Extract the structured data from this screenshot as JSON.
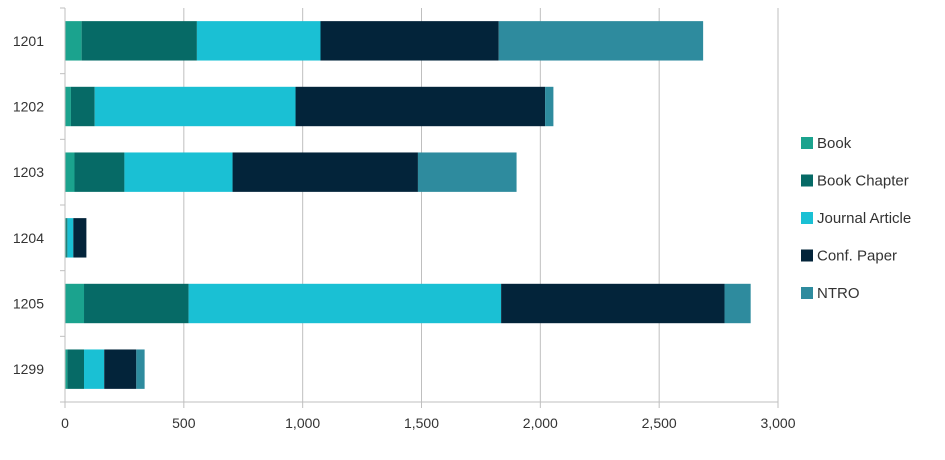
{
  "chart_data": {
    "type": "bar",
    "orientation": "horizontal",
    "stacked": true,
    "title": "",
    "xlabel": "",
    "ylabel": "",
    "categories": [
      "1201",
      "1202",
      "1203",
      "1204",
      "1205",
      "1299"
    ],
    "series": [
      {
        "name": "Book",
        "color": "#1BA38E",
        "values": [
          70,
          25,
          40,
          5,
          80,
          10
        ]
      },
      {
        "name": "Book Chapter",
        "color": "#066A66",
        "values": [
          485,
          100,
          210,
          5,
          440,
          70
        ]
      },
      {
        "name": "Journal Article",
        "color": "#1AC0D4",
        "values": [
          520,
          845,
          455,
          25,
          1315,
          85
        ]
      },
      {
        "name": "Conf. Paper",
        "color": "#03243A",
        "values": [
          750,
          1050,
          780,
          55,
          940,
          135
        ]
      },
      {
        "name": "NTRO",
        "color": "#2E8B9E",
        "values": [
          860,
          35,
          415,
          0,
          110,
          35
        ]
      }
    ],
    "xlim": [
      0,
      3000
    ],
    "xticks": [
      0,
      500,
      1000,
      1500,
      2000,
      2500,
      3000
    ],
    "xtick_labels": [
      "0",
      "500",
      "1,000",
      "1,500",
      "2,000",
      "2,500",
      "3,000"
    ],
    "grid": "vertical",
    "legend": "right"
  }
}
